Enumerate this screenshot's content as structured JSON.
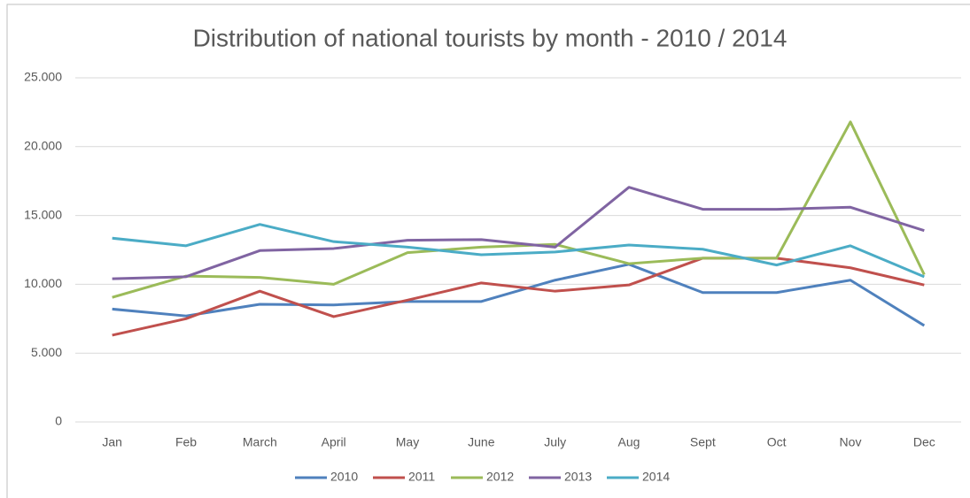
{
  "chart_data": {
    "type": "line",
    "title": "Distribution of national tourists by month - 2010 / 2014",
    "categories": [
      "Jan",
      "Feb",
      "March",
      "April",
      "May",
      "June",
      "July",
      "Aug",
      "Sept",
      "Oct",
      "Nov",
      "Dec"
    ],
    "series": [
      {
        "name": "2010",
        "color": "#4f81bd",
        "values": [
          8200,
          7700,
          8550,
          8500,
          8750,
          8750,
          10300,
          11450,
          9400,
          9400,
          10300,
          7000
        ]
      },
      {
        "name": "2011",
        "color": "#c0504d",
        "values": [
          6300,
          7500,
          9500,
          7650,
          8850,
          10100,
          9500,
          9950,
          11900,
          11900,
          11200,
          9950
        ]
      },
      {
        "name": "2012",
        "color": "#9bbb59",
        "values": [
          9050,
          10600,
          10500,
          10000,
          12300,
          12700,
          12900,
          11500,
          11900,
          11900,
          21800,
          10700
        ]
      },
      {
        "name": "2013",
        "color": "#8064a2",
        "values": [
          10400,
          10550,
          12450,
          12600,
          13200,
          13250,
          12700,
          17050,
          15450,
          15450,
          15600,
          13900
        ]
      },
      {
        "name": "2014",
        "color": "#4bacc6",
        "values": [
          13350,
          12800,
          14350,
          13100,
          12700,
          12150,
          12350,
          12850,
          12550,
          11400,
          12800,
          10550
        ]
      }
    ],
    "ylim": [
      0,
      25000
    ],
    "yticks": [
      0,
      {
        "value": 5000,
        "label": "5.000"
      },
      {
        "value": 10000,
        "label": "10.000"
      },
      {
        "value": 15000,
        "label": "15.000"
      },
      {
        "value": 20000,
        "label": "20.000"
      },
      {
        "value": 25000,
        "label": "25.000"
      }
    ],
    "grid": true,
    "legend": "bottom"
  }
}
